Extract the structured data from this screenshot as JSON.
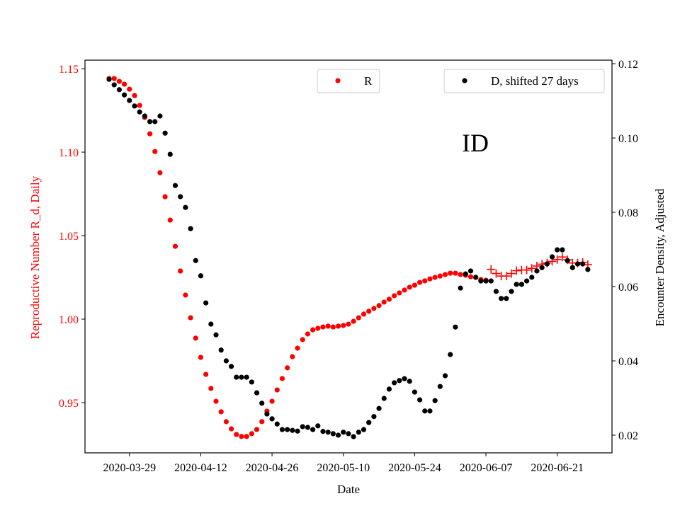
{
  "chart_data": {
    "type": "scatter",
    "title": "ID",
    "xlabel": "Date",
    "ylabel_left": "Reproductive Number R_d, Daily",
    "ylabel_right": "Encounter Density, Adjusted",
    "x_start_date": "2020-03-25",
    "x_unit": "days since 2020-03-25",
    "xlim": [
      -4.73,
      98.75
    ],
    "ylim_left": [
      0.9199,
      1.1551
    ],
    "ylim_right": [
      0.01524,
      0.12095
    ],
    "grid": false,
    "x_ticks": [
      {
        "offset": 4,
        "label": "2020-03-29"
      },
      {
        "offset": 18,
        "label": "2020-04-12"
      },
      {
        "offset": 32,
        "label": "2020-04-26"
      },
      {
        "offset": 46,
        "label": "2020-05-10"
      },
      {
        "offset": 60,
        "label": "2020-05-24"
      },
      {
        "offset": 74,
        "label": "2020-06-07"
      },
      {
        "offset": 88,
        "label": "2020-06-21"
      }
    ],
    "y_ticks_left": [
      {
        "value": 0.95,
        "label": "0.95"
      },
      {
        "value": 1.0,
        "label": "1.00"
      },
      {
        "value": 1.05,
        "label": "1.05"
      },
      {
        "value": 1.1,
        "label": "1.10"
      },
      {
        "value": 1.15,
        "label": "1.15"
      }
    ],
    "y_ticks_right": [
      {
        "value": 0.02,
        "label": "0.02"
      },
      {
        "value": 0.04,
        "label": "0.04"
      },
      {
        "value": 0.06,
        "label": "0.06"
      },
      {
        "value": 0.08,
        "label": "0.08"
      },
      {
        "value": 0.1,
        "label": "0.10"
      },
      {
        "value": 0.12,
        "label": "0.12"
      }
    ],
    "legend": [
      {
        "label": "R",
        "placement": "top-center",
        "color": "#ff0000",
        "marker": "dot"
      },
      {
        "label": "D, shifted 27 days",
        "placement": "top-right",
        "color": "#000000",
        "marker": "dot"
      }
    ],
    "series": [
      {
        "name": "R",
        "axis": "left",
        "color": "#ff0000",
        "marker": "dot",
        "start_offset": 0,
        "values": [
          1.1441,
          1.1441,
          1.1424,
          1.1407,
          1.1377,
          1.1339,
          1.128,
          1.1208,
          1.111,
          1.1004,
          1.0877,
          1.0733,
          1.0593,
          1.0436,
          1.0288,
          1.0144,
          1.0008,
          0.9886,
          0.9771,
          0.9669,
          0.9585,
          0.9508,
          0.9445,
          0.9386,
          0.9343,
          0.9309,
          0.9297,
          0.9297,
          0.9314,
          0.9339,
          0.9386,
          0.9449,
          0.9508,
          0.9576,
          0.9644,
          0.9708,
          0.9775,
          0.9826,
          0.9877,
          0.9911,
          0.9936,
          0.9945,
          0.9953,
          0.9958,
          0.9953,
          0.9958,
          0.9962,
          0.997,
          0.9987,
          1.0008,
          1.003,
          1.0047,
          1.0064,
          1.0081,
          1.0102,
          1.0119,
          1.014,
          1.0157,
          1.0174,
          1.0191,
          1.0203,
          1.022,
          1.0229,
          1.0241,
          1.025,
          1.0258,
          1.0267,
          1.0275,
          1.0275,
          1.0267,
          1.0263,
          1.0254,
          1.025,
          1.0237,
          1.0233
        ]
      },
      {
        "name": "R (projected)",
        "axis": "left",
        "color": "#ff0000",
        "marker": "plus",
        "start_offset": 75,
        "values": [
          1.0298,
          1.0273,
          1.0258,
          1.0258,
          1.0273,
          1.029,
          1.0294,
          1.0294,
          1.0304,
          1.0318,
          1.0329,
          1.0336,
          1.0346,
          1.0357,
          1.0372,
          1.0355,
          1.0336,
          1.0336,
          1.034,
          1.0326
        ]
      },
      {
        "name": "D, shifted 27 days",
        "axis": "right",
        "color": "#000000",
        "marker": "dot",
        "start_offset": 0,
        "values": [
          0.1158,
          0.1143,
          0.113,
          0.1116,
          0.1101,
          0.1086,
          0.107,
          0.1059,
          0.1044,
          0.1044,
          0.1059,
          0.1013,
          0.0956,
          0.0872,
          0.0842,
          0.0813,
          0.0756,
          0.067,
          0.0629,
          0.0556,
          0.0499,
          0.047,
          0.0429,
          0.04,
          0.0385,
          0.0356,
          0.0356,
          0.0356,
          0.0343,
          0.0314,
          0.0286,
          0.0257,
          0.0244,
          0.023,
          0.0215,
          0.0215,
          0.0213,
          0.0211,
          0.0223,
          0.0221,
          0.0215,
          0.0225,
          0.021,
          0.0208,
          0.0204,
          0.02,
          0.0208,
          0.0204,
          0.0196,
          0.0208,
          0.0215,
          0.0234,
          0.025,
          0.0272,
          0.0299,
          0.0324,
          0.0341,
          0.0347,
          0.0352,
          0.0345,
          0.0316,
          0.0295,
          0.0265,
          0.0265,
          0.0293,
          0.0331,
          0.036,
          0.0417,
          0.0491,
          0.0596,
          0.0634,
          0.0642,
          0.0625,
          0.0615,
          0.0615,
          0.0615,
          0.0587,
          0.0568,
          0.0568,
          0.0587,
          0.0606,
          0.0606,
          0.0615,
          0.0625,
          0.0642,
          0.0651,
          0.0661,
          0.068,
          0.0699,
          0.0699,
          0.067,
          0.0651,
          0.0661,
          0.0661,
          0.0646
        ]
      }
    ]
  }
}
